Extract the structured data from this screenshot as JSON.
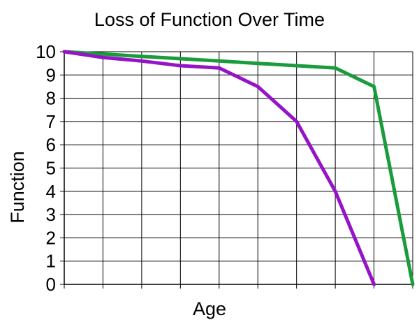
{
  "chart_data": {
    "type": "line",
    "title": "Loss of Function Over Time",
    "xlabel": "Age",
    "ylabel": "Function",
    "x": [
      0,
      1,
      2,
      3,
      4,
      5,
      6,
      7,
      8,
      9
    ],
    "xlim": [
      0,
      9
    ],
    "ylim": [
      0,
      10
    ],
    "yticks": [
      0,
      1,
      2,
      3,
      4,
      5,
      6,
      7,
      8,
      9,
      10
    ],
    "x_tick_labels_shown": false,
    "grid": true,
    "legend": "none",
    "series": [
      {
        "color": "#1a9c3c",
        "values": [
          10,
          9.9,
          9.8,
          9.7,
          9.6,
          9.5,
          9.4,
          9.3,
          8.5,
          0
        ]
      },
      {
        "color": "#9614c8",
        "x": [
          0,
          1,
          2,
          3,
          4,
          5,
          6,
          7,
          8
        ],
        "values": [
          10,
          9.75,
          9.6,
          9.4,
          9.3,
          8.5,
          7,
          4,
          0
        ]
      }
    ]
  }
}
